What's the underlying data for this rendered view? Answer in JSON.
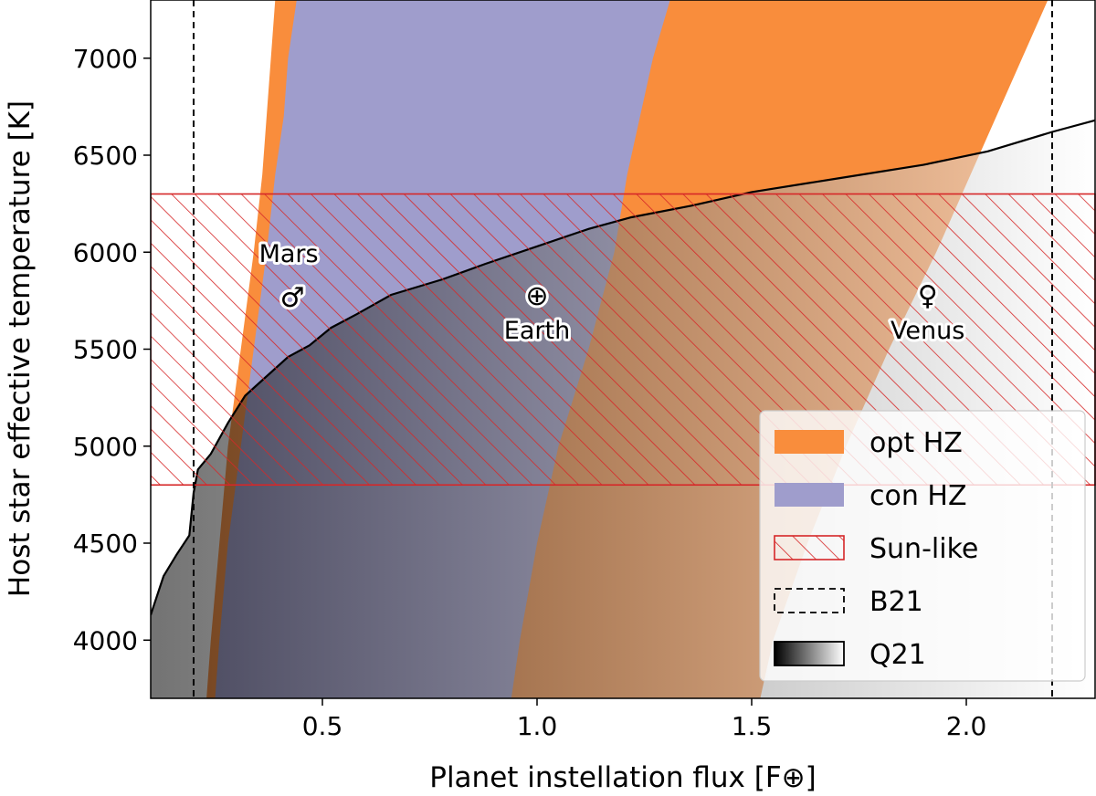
{
  "chart_data": {
    "type": "area",
    "xlabel": "Planet instellation flux [F⊕]",
    "ylabel": "Host star effective temperature [K]",
    "xlim": [
      0.1,
      2.3
    ],
    "ylim": [
      3700,
      7300
    ],
    "xticks": [
      0.5,
      1.0,
      1.5,
      2.0
    ],
    "xtick_labels": [
      "0.5",
      "1.0",
      "1.5",
      "2.0"
    ],
    "yticks": [
      4000,
      4500,
      5000,
      5500,
      6000,
      6500,
      7000
    ],
    "ytick_labels": [
      "4000",
      "4500",
      "5000",
      "5500",
      "6000",
      "6500",
      "7000"
    ],
    "grid": false,
    "legend_position": "lower-right",
    "legend": [
      {
        "key": "opt",
        "label": "opt HZ"
      },
      {
        "key": "con",
        "label": "con HZ"
      },
      {
        "key": "sun",
        "label": "Sun-like"
      },
      {
        "key": "b21",
        "label": "B21"
      },
      {
        "key": "q21",
        "label": "Q21"
      }
    ],
    "colors": {
      "opt": "#f98d3c",
      "con": "#9f9dcc",
      "sun": "#d62728",
      "b21": "#000000",
      "q21": "#000000"
    },
    "regions": {
      "opt_hz": {
        "inner_edge": {
          "x": [
            1.52,
            1.55,
            1.63,
            1.72,
            1.82,
            1.93,
            2.01,
            2.07,
            2.13,
            2.19
          ],
          "y": [
            3700,
            4000,
            4500,
            5000,
            5500,
            6000,
            6400,
            6700,
            7000,
            7300
          ]
        },
        "outer_edge": {
          "x": [
            0.23,
            0.24,
            0.26,
            0.28,
            0.31,
            0.34,
            0.36,
            0.37,
            0.38,
            0.39
          ],
          "y": [
            3700,
            4000,
            4500,
            5000,
            5500,
            6000,
            6400,
            6700,
            7000,
            7300
          ]
        }
      },
      "con_hz": {
        "inner_edge": {
          "x": [
            0.94,
            0.96,
            1.0,
            1.05,
            1.12,
            1.18,
            1.21,
            1.24,
            1.27,
            1.31
          ],
          "y": [
            3700,
            4000,
            4500,
            5000,
            5500,
            6000,
            6400,
            6700,
            7000,
            7300
          ]
        },
        "outer_edge": {
          "x": [
            0.25,
            0.26,
            0.28,
            0.31,
            0.34,
            0.37,
            0.39,
            0.41,
            0.42,
            0.44
          ],
          "y": [
            3700,
            4000,
            4500,
            5000,
            5500,
            6000,
            6400,
            6700,
            7000,
            7300
          ]
        }
      },
      "opt_hz_inner_band": {
        "left_edge": {
          "x": [
            0.94,
            0.96,
            1.0,
            1.05,
            1.12,
            1.18,
            1.21,
            1.24,
            1.27,
            1.31
          ],
          "y": [
            3700,
            4000,
            4500,
            5000,
            5500,
            6000,
            6400,
            6700,
            7000,
            7300
          ]
        }
      },
      "sun_like": {
        "y": [
          4800,
          6300
        ],
        "x": [
          0.1,
          2.3
        ]
      },
      "b21": {
        "x": [
          0.2,
          2.2
        ]
      },
      "q21_upper_boundary": {
        "x": [
          0.1,
          0.13,
          0.16,
          0.19,
          0.2,
          0.21,
          0.24,
          0.28,
          0.32,
          0.36,
          0.42,
          0.47,
          0.52,
          0.58,
          0.66,
          0.78,
          0.88,
          1.0,
          1.12,
          1.22,
          1.36,
          1.5,
          1.7,
          1.9,
          2.05,
          2.2,
          2.3
        ],
        "y": [
          4130,
          4330,
          4440,
          4540,
          4760,
          4880,
          4960,
          5120,
          5260,
          5340,
          5460,
          5520,
          5610,
          5680,
          5780,
          5860,
          5940,
          6030,
          6120,
          6180,
          6240,
          6310,
          6380,
          6450,
          6520,
          6620,
          6680
        ]
      }
    },
    "annotations": [
      {
        "name": "Mars",
        "symbol": "♂",
        "x": 0.43,
        "y": 5770
      },
      {
        "name": "Earth",
        "symbol": "⊕",
        "x": 1.0,
        "y": 5780
      },
      {
        "name": "Venus",
        "symbol": "♀",
        "x": 1.91,
        "y": 5780
      }
    ]
  }
}
